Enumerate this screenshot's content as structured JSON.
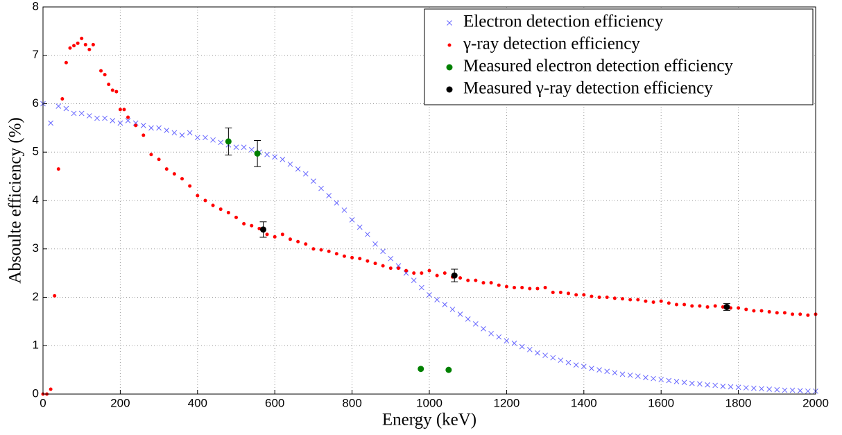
{
  "chart_data": {
    "type": "scatter",
    "xlabel": "Energy (keV)",
    "ylabel": "Absoulte efficiency (%)",
    "xlim": [
      0,
      2000
    ],
    "ylim": [
      0,
      8
    ],
    "xticks": [
      0,
      200,
      400,
      600,
      800,
      1000,
      1200,
      1400,
      1600,
      1800,
      2000
    ],
    "yticks": [
      0,
      1,
      2,
      3,
      4,
      5,
      6,
      7,
      8
    ],
    "grid": true,
    "legend": "upper-right",
    "series": [
      {
        "name": "Electron detection efficiency",
        "color": "#6666ff",
        "marker": "x",
        "x": [
          0,
          20,
          40,
          60,
          80,
          100,
          120,
          140,
          160,
          180,
          200,
          220,
          240,
          260,
          280,
          300,
          320,
          340,
          360,
          380,
          400,
          420,
          440,
          460,
          480,
          500,
          520,
          540,
          560,
          580,
          600,
          620,
          640,
          660,
          680,
          700,
          720,
          740,
          760,
          780,
          800,
          820,
          840,
          860,
          880,
          900,
          920,
          940,
          960,
          980,
          1000,
          1020,
          1040,
          1060,
          1080,
          1100,
          1120,
          1140,
          1160,
          1180,
          1200,
          1220,
          1240,
          1260,
          1280,
          1300,
          1320,
          1340,
          1360,
          1380,
          1400,
          1420,
          1440,
          1460,
          1480,
          1500,
          1520,
          1540,
          1560,
          1580,
          1600,
          1620,
          1640,
          1660,
          1680,
          1700,
          1720,
          1740,
          1760,
          1780,
          1800,
          1820,
          1840,
          1860,
          1880,
          1900,
          1920,
          1940,
          1960,
          1980,
          2000
        ],
        "values": [
          6.0,
          5.6,
          5.95,
          5.9,
          5.8,
          5.8,
          5.75,
          5.7,
          5.7,
          5.65,
          5.6,
          5.65,
          5.6,
          5.55,
          5.5,
          5.5,
          5.45,
          5.4,
          5.35,
          5.4,
          5.3,
          5.3,
          5.25,
          5.2,
          5.15,
          5.1,
          5.1,
          5.05,
          5.0,
          4.95,
          4.9,
          4.85,
          4.75,
          4.65,
          4.55,
          4.4,
          4.25,
          4.1,
          3.95,
          3.8,
          3.6,
          3.45,
          3.3,
          3.1,
          2.95,
          2.8,
          2.65,
          2.5,
          2.35,
          2.2,
          2.05,
          1.95,
          1.85,
          1.75,
          1.65,
          1.55,
          1.45,
          1.35,
          1.25,
          1.18,
          1.1,
          1.05,
          0.98,
          0.92,
          0.85,
          0.8,
          0.75,
          0.7,
          0.65,
          0.6,
          0.57,
          0.53,
          0.5,
          0.47,
          0.44,
          0.41,
          0.39,
          0.37,
          0.34,
          0.32,
          0.3,
          0.28,
          0.26,
          0.24,
          0.22,
          0.21,
          0.19,
          0.18,
          0.16,
          0.15,
          0.14,
          0.13,
          0.12,
          0.11,
          0.1,
          0.09,
          0.08,
          0.08,
          0.07,
          0.06,
          0.06
        ]
      },
      {
        "name": "γ-ray detection efficiency",
        "color": "#ff0000",
        "marker": "dot",
        "x": [
          0,
          10,
          20,
          30,
          40,
          50,
          60,
          70,
          80,
          90,
          100,
          110,
          120,
          130,
          150,
          160,
          170,
          180,
          190,
          200,
          210,
          220,
          240,
          260,
          280,
          300,
          320,
          340,
          360,
          380,
          400,
          420,
          440,
          460,
          480,
          500,
          520,
          540,
          560,
          580,
          600,
          620,
          640,
          660,
          680,
          700,
          720,
          740,
          760,
          780,
          800,
          820,
          840,
          860,
          880,
          900,
          920,
          940,
          960,
          980,
          1000,
          1020,
          1040,
          1060,
          1080,
          1100,
          1120,
          1140,
          1160,
          1180,
          1200,
          1220,
          1240,
          1260,
          1280,
          1300,
          1320,
          1340,
          1360,
          1380,
          1400,
          1420,
          1440,
          1460,
          1480,
          1500,
          1520,
          1540,
          1560,
          1580,
          1600,
          1620,
          1640,
          1660,
          1680,
          1700,
          1720,
          1740,
          1760,
          1780,
          1800,
          1820,
          1840,
          1860,
          1880,
          1900,
          1920,
          1940,
          1960,
          1980,
          2000
        ],
        "values": [
          0,
          0,
          0.1,
          2.03,
          4.65,
          6.1,
          6.85,
          7.15,
          7.2,
          7.25,
          7.35,
          7.22,
          7.12,
          7.22,
          6.68,
          6.6,
          6.4,
          6.28,
          6.25,
          5.88,
          5.88,
          5.72,
          5.55,
          5.35,
          4.95,
          4.85,
          4.65,
          4.55,
          4.45,
          4.3,
          4.1,
          4.0,
          3.9,
          3.82,
          3.75,
          3.65,
          3.52,
          3.48,
          3.42,
          3.3,
          3.25,
          3.3,
          3.2,
          3.15,
          3.1,
          3.0,
          2.98,
          2.95,
          2.9,
          2.85,
          2.82,
          2.8,
          2.75,
          2.7,
          2.65,
          2.6,
          2.6,
          2.55,
          2.5,
          2.5,
          2.55,
          2.45,
          2.5,
          2.42,
          2.4,
          2.35,
          2.35,
          2.3,
          2.3,
          2.25,
          2.22,
          2.2,
          2.2,
          2.18,
          2.18,
          2.2,
          2.1,
          2.1,
          2.08,
          2.05,
          2.05,
          2.02,
          2.0,
          2.0,
          1.98,
          1.97,
          1.95,
          1.95,
          1.92,
          1.9,
          1.92,
          1.88,
          1.85,
          1.85,
          1.82,
          1.82,
          1.8,
          1.82,
          1.8,
          1.78,
          1.78,
          1.75,
          1.72,
          1.72,
          1.7,
          1.68,
          1.68,
          1.65,
          1.65,
          1.63,
          1.65
        ]
      },
      {
        "name": "Measured electron detection efficiency",
        "color": "#008000",
        "marker": "circle",
        "x": [
          480,
          555,
          978,
          1050
        ],
        "values": [
          5.22,
          4.97,
          0.52,
          0.5
        ],
        "errors": [
          0.28,
          0.27,
          null,
          null
        ]
      },
      {
        "name": "Measured γ-ray detection efficiency",
        "color": "#000000",
        "marker": "circle",
        "x": [
          570,
          1065,
          1770
        ],
        "values": [
          3.4,
          2.45,
          1.8
        ],
        "errors": [
          0.16,
          0.13,
          0.07
        ]
      }
    ]
  }
}
